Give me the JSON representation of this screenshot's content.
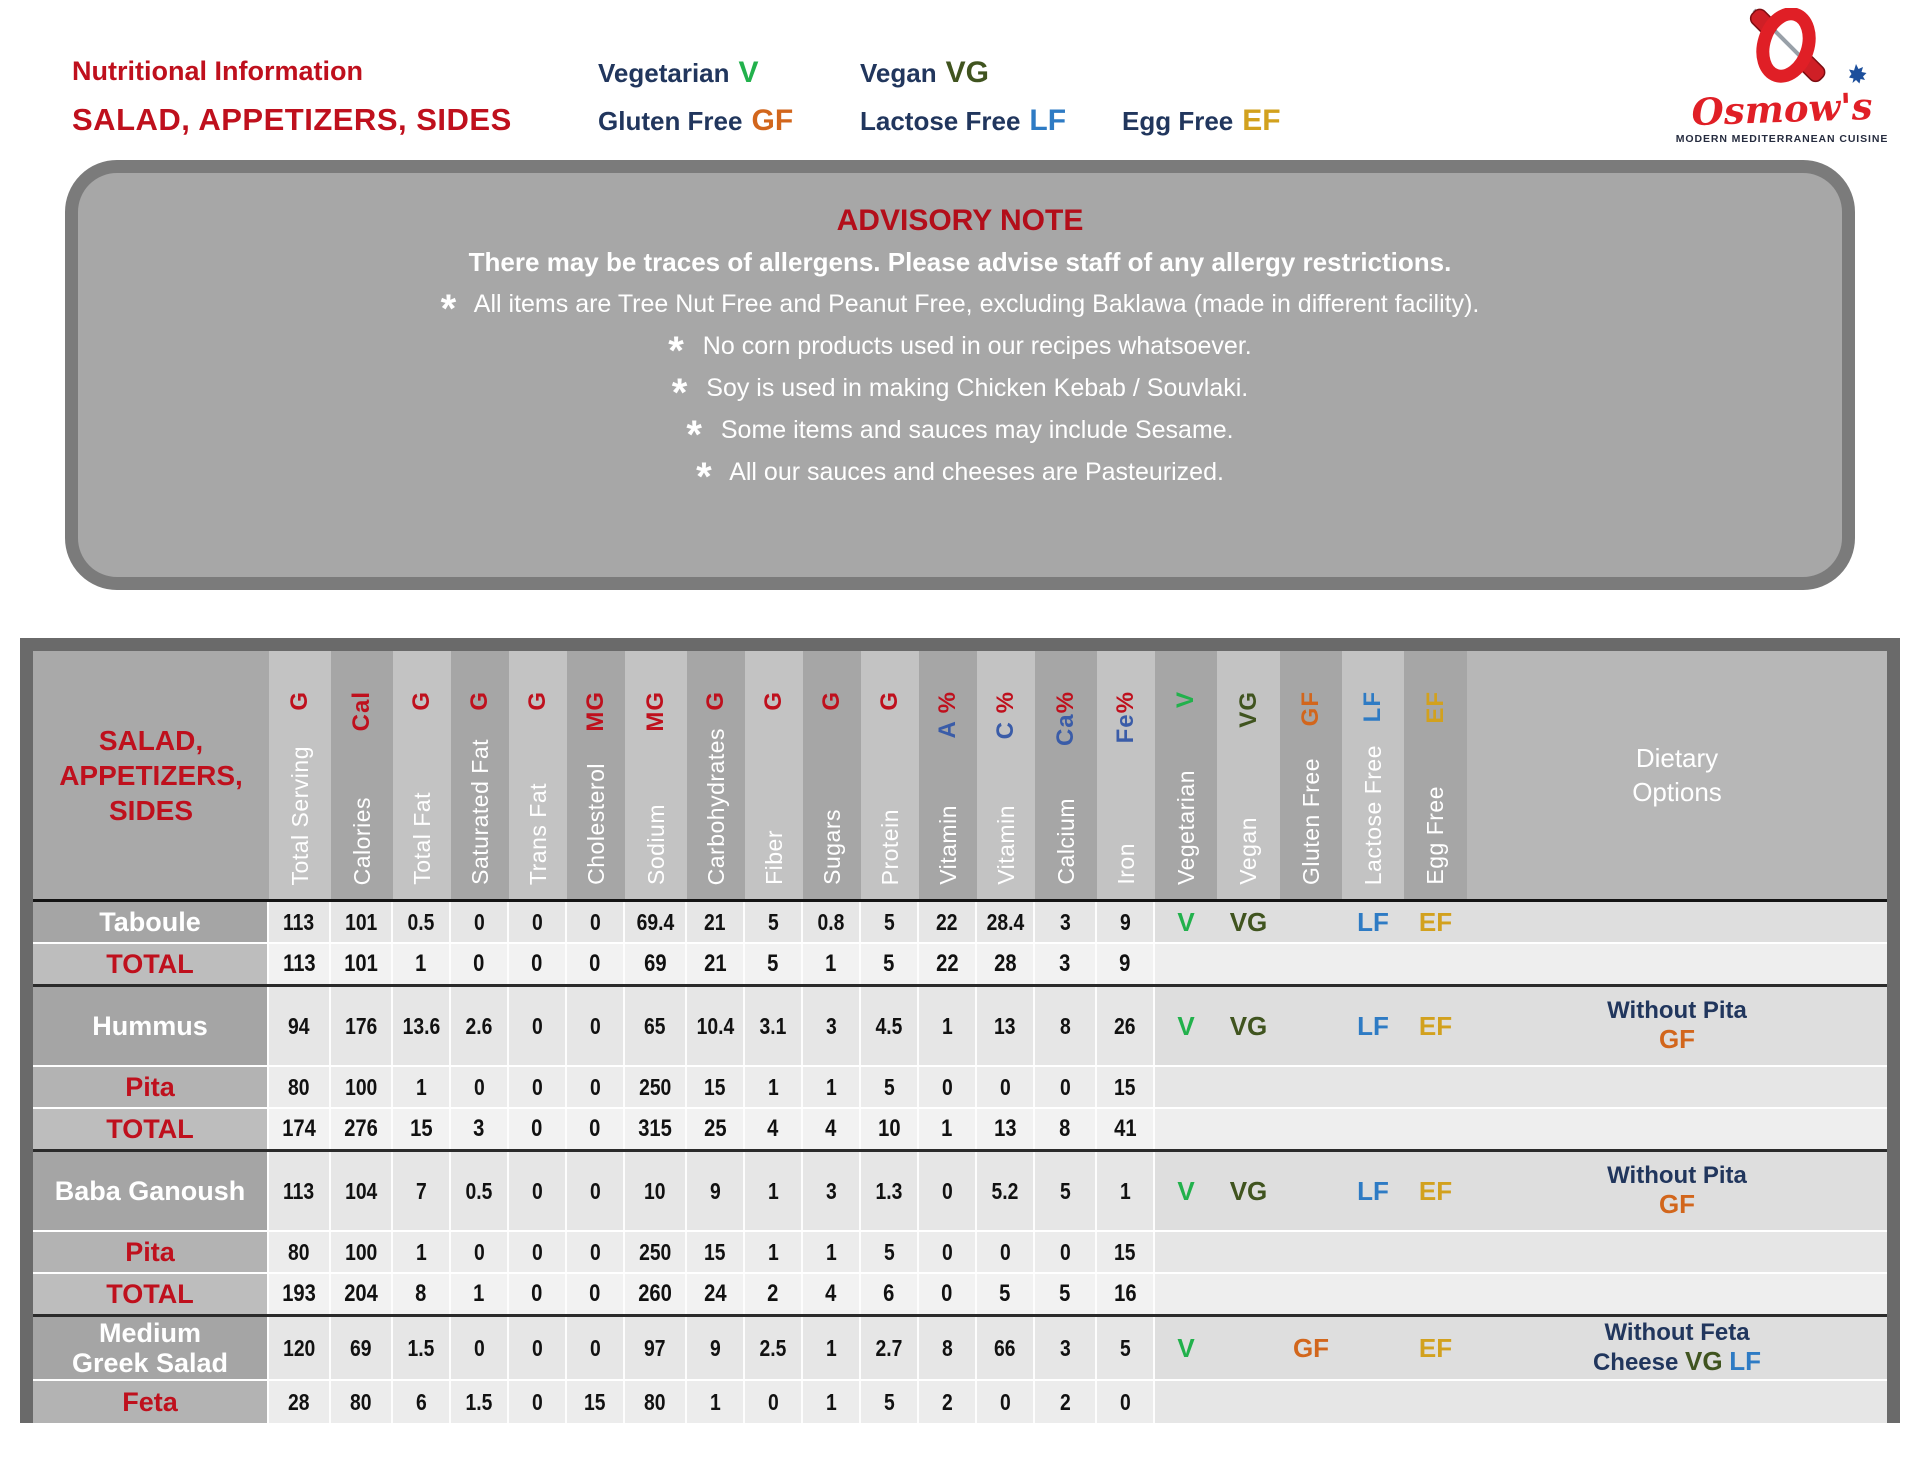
{
  "palette": {
    "red": "#bf101d",
    "navy": "#21365d",
    "v": "#22b14c",
    "vg": "#40541f",
    "gf": "#d2661c",
    "lf": "#2e7bc4",
    "ef": "#d2a11e",
    "blue": "#3a5ca8"
  },
  "header": {
    "title_line1": "Nutritional Information",
    "title_line2": "SALAD, APPETIZERS, SIDES"
  },
  "legend": {
    "items": [
      {
        "label": "Vegetarian",
        "badge": "V",
        "color": "v"
      },
      {
        "label": "Vegan",
        "badge": "VG",
        "color": "vg"
      },
      {
        "label": "Gluten Free",
        "badge": "GF",
        "color": "gf"
      },
      {
        "label": "Lactose Free",
        "badge": "LF",
        "color": "lf"
      },
      {
        "label": "Egg Free",
        "badge": "EF",
        "color": "ef"
      }
    ]
  },
  "logo": {
    "name": "Osmow's",
    "tagline": "MODERN MEDITERRANEAN CUISINE"
  },
  "advisory": {
    "title": "ADVISORY NOTE",
    "intro": "There may be traces of allergens. Please advise staff of any allergy restrictions.",
    "bullets": [
      "All items are Tree Nut Free and Peanut Free, excluding Baklawa (made in different facility).",
      "No corn products used in our recipes whatsoever.",
      "Soy is used in making Chicken Kebab / Souvlaki.",
      "Some items and sauces may include Sesame.",
      "All our sauces and cheeses are Pasteurized."
    ]
  },
  "table": {
    "item_header": "SALAD,\nAPPETIZERS,\nSIDES",
    "dietary_header": "Dietary\nOptions",
    "columns": [
      {
        "name": "Total Serving",
        "unit": [
          {
            "t": "G",
            "c": "red"
          }
        ],
        "shade": "light"
      },
      {
        "name": "Calories",
        "unit": [
          {
            "t": "Cal",
            "c": "red"
          }
        ],
        "shade": "dark"
      },
      {
        "name": "Total Fat",
        "unit": [
          {
            "t": "G",
            "c": "red"
          }
        ],
        "shade": "light"
      },
      {
        "name": "Saturated Fat",
        "unit": [
          {
            "t": "G",
            "c": "red"
          }
        ],
        "shade": "dark"
      },
      {
        "name": "Trans Fat",
        "unit": [
          {
            "t": "G",
            "c": "red"
          }
        ],
        "shade": "light"
      },
      {
        "name": "Cholesterol",
        "unit": [
          {
            "t": "MG",
            "c": "red"
          }
        ],
        "shade": "dark"
      },
      {
        "name": "Sodium",
        "unit": [
          {
            "t": "MG",
            "c": "red"
          }
        ],
        "shade": "light"
      },
      {
        "name": "Carbohydrates",
        "unit": [
          {
            "t": "G",
            "c": "red"
          }
        ],
        "shade": "dark"
      },
      {
        "name": "Fiber",
        "unit": [
          {
            "t": "G",
            "c": "red"
          }
        ],
        "shade": "light"
      },
      {
        "name": "Sugars",
        "unit": [
          {
            "t": "G",
            "c": "red"
          }
        ],
        "shade": "dark"
      },
      {
        "name": "Protein",
        "unit": [
          {
            "t": "G",
            "c": "red"
          }
        ],
        "shade": "light"
      },
      {
        "name": "Vitamin",
        "unit": [
          {
            "t": "A ",
            "c": "blue"
          },
          {
            "t": "%",
            "c": "red"
          }
        ],
        "shade": "dark"
      },
      {
        "name": "Vitamin",
        "unit": [
          {
            "t": "C ",
            "c": "blue"
          },
          {
            "t": "%",
            "c": "red"
          }
        ],
        "shade": "light"
      },
      {
        "name": "Calcium",
        "unit": [
          {
            "t": "Ca",
            "c": "blue"
          },
          {
            "t": "%",
            "c": "red"
          }
        ],
        "shade": "dark"
      },
      {
        "name": "Iron",
        "unit": [
          {
            "t": "Fe",
            "c": "blue"
          },
          {
            "t": "%",
            "c": "red"
          }
        ],
        "shade": "light"
      },
      {
        "name": "Vegetarian",
        "unit": [
          {
            "t": "V",
            "c": "v"
          }
        ],
        "shade": "dark"
      },
      {
        "name": "Vegan",
        "unit": [
          {
            "t": "VG",
            "c": "vg"
          }
        ],
        "shade": "light"
      },
      {
        "name": "Gluten Free",
        "unit": [
          {
            "t": "GF",
            "c": "gf"
          }
        ],
        "shade": "dark"
      },
      {
        "name": "Lactose Free",
        "unit": [
          {
            "t": "LF",
            "c": "lf"
          }
        ],
        "shade": "light"
      },
      {
        "name": "Egg Free",
        "unit": [
          {
            "t": "EF",
            "c": "ef"
          }
        ],
        "shade": "dark"
      }
    ],
    "rows": [
      {
        "name": "Taboule",
        "type": "product",
        "sep": "none",
        "values": [
          "113",
          "101",
          "0.5",
          "0",
          "0",
          "0",
          "69.4",
          "21",
          "5",
          "0.8",
          "5",
          "22",
          "28.4",
          "3",
          "9"
        ],
        "badges": [
          "V",
          "VG",
          "",
          "LF",
          "EF"
        ],
        "dietary": []
      },
      {
        "name": "TOTAL",
        "type": "total",
        "sep": "light",
        "values": [
          "113",
          "101",
          "1",
          "0",
          "0",
          "0",
          "69",
          "21",
          "5",
          "1",
          "5",
          "22",
          "28",
          "3",
          "9"
        ],
        "badges": [
          "",
          "",
          "",
          "",
          ""
        ],
        "dietary": []
      },
      {
        "name": "Hummus",
        "type": "product",
        "sep": "dark",
        "values": [
          "94",
          "176",
          "13.6",
          "2.6",
          "0",
          "0",
          "65",
          "10.4",
          "3.1",
          "3",
          "4.5",
          "1",
          "13",
          "8",
          "26"
        ],
        "badges": [
          "V",
          "VG",
          "",
          "LF",
          "EF"
        ],
        "dietary": [
          [
            {
              "t": "Without Pita",
              "c": "navy"
            }
          ],
          [
            {
              "t": "GF",
              "c": "gf"
            }
          ]
        ]
      },
      {
        "name": "Pita",
        "type": "sub",
        "sep": "light",
        "values": [
          "80",
          "100",
          "1",
          "0",
          "0",
          "0",
          "250",
          "15",
          "1",
          "1",
          "5",
          "0",
          "0",
          "0",
          "15"
        ],
        "badges": [
          "",
          "",
          "",
          "",
          ""
        ],
        "dietary": []
      },
      {
        "name": "TOTAL",
        "type": "total",
        "sep": "light",
        "values": [
          "174",
          "276",
          "15",
          "3",
          "0",
          "0",
          "315",
          "25",
          "4",
          "4",
          "10",
          "1",
          "13",
          "8",
          "41"
        ],
        "badges": [
          "",
          "",
          "",
          "",
          ""
        ],
        "dietary": []
      },
      {
        "name": "Baba Ganoush",
        "type": "product",
        "sep": "dark",
        "values": [
          "113",
          "104",
          "7",
          "0.5",
          "0",
          "0",
          "10",
          "9",
          "1",
          "3",
          "1.3",
          "0",
          "5.2",
          "5",
          "1"
        ],
        "badges": [
          "V",
          "VG",
          "",
          "LF",
          "EF"
        ],
        "dietary": [
          [
            {
              "t": "Without Pita",
              "c": "navy"
            }
          ],
          [
            {
              "t": "GF",
              "c": "gf"
            }
          ]
        ]
      },
      {
        "name": "Pita",
        "type": "sub",
        "sep": "light",
        "values": [
          "80",
          "100",
          "1",
          "0",
          "0",
          "0",
          "250",
          "15",
          "1",
          "1",
          "5",
          "0",
          "0",
          "0",
          "15"
        ],
        "badges": [
          "",
          "",
          "",
          "",
          ""
        ],
        "dietary": []
      },
      {
        "name": "TOTAL",
        "type": "total",
        "sep": "light",
        "values": [
          "193",
          "204",
          "8",
          "1",
          "0",
          "0",
          "260",
          "24",
          "2",
          "4",
          "6",
          "0",
          "5",
          "5",
          "16"
        ],
        "badges": [
          "",
          "",
          "",
          "",
          ""
        ],
        "dietary": []
      },
      {
        "name": "Medium\nGreek Salad",
        "type": "product",
        "sep": "dark",
        "values": [
          "120",
          "69",
          "1.5",
          "0",
          "0",
          "0",
          "97",
          "9",
          "2.5",
          "1",
          "2.7",
          "8",
          "66",
          "3",
          "5"
        ],
        "badges": [
          "V",
          "",
          "GF",
          "",
          "EF"
        ],
        "dietary": [
          [
            {
              "t": "Without Feta",
              "c": "navy"
            }
          ],
          [
            {
              "t": "Cheese ",
              "c": "navy"
            },
            {
              "t": "VG",
              "c": "vg"
            },
            {
              "t": " ",
              "c": "navy"
            },
            {
              "t": "LF",
              "c": "lf"
            }
          ]
        ]
      },
      {
        "name": "Feta",
        "type": "sub",
        "sep": "light",
        "values": [
          "28",
          "80",
          "6",
          "1.5",
          "0",
          "15",
          "80",
          "1",
          "0",
          "1",
          "5",
          "2",
          "0",
          "2",
          "0"
        ],
        "badges": [
          "",
          "",
          "",
          "",
          ""
        ],
        "dietary": []
      }
    ]
  }
}
